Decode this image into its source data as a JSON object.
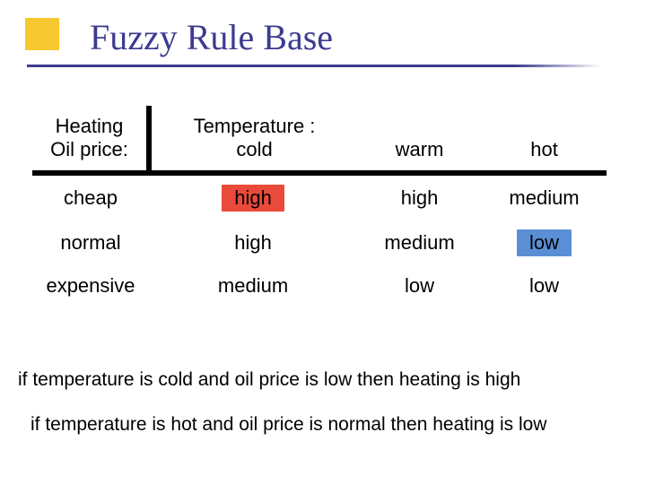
{
  "title": "Fuzzy Rule Base",
  "accent_color": "#f8c830",
  "title_color": "#3b3b8f",
  "highlight_red": "#ea4a3a",
  "highlight_blue": "#5a8fd6",
  "row_var_line1": "Heating",
  "row_var_line2": "Oil price:",
  "col_var_label": "Temperature :",
  "columns": [
    "cold",
    "warm",
    "hot"
  ],
  "rows": [
    "cheap",
    "normal",
    "expensive"
  ],
  "cells": {
    "r0c0": "high",
    "r0c1": "high",
    "r0c2": "medium",
    "r1c0": "high",
    "r1c1": "medium",
    "r1c2": "low",
    "r2c0": "medium",
    "r2c1": "low",
    "r2c2": "low"
  },
  "highlights": {
    "r0c0": "#ea4a3a",
    "r1c2": "#5a8fd6"
  },
  "rules": {
    "rule1": "if temperature is cold and oil price is low then heating is high",
    "rule2": "if temperature is hot and oil price is normal then heating is low"
  },
  "typography": {
    "title_fontsize": 40,
    "body_fontsize": 22,
    "rule_fontsize": 21
  }
}
